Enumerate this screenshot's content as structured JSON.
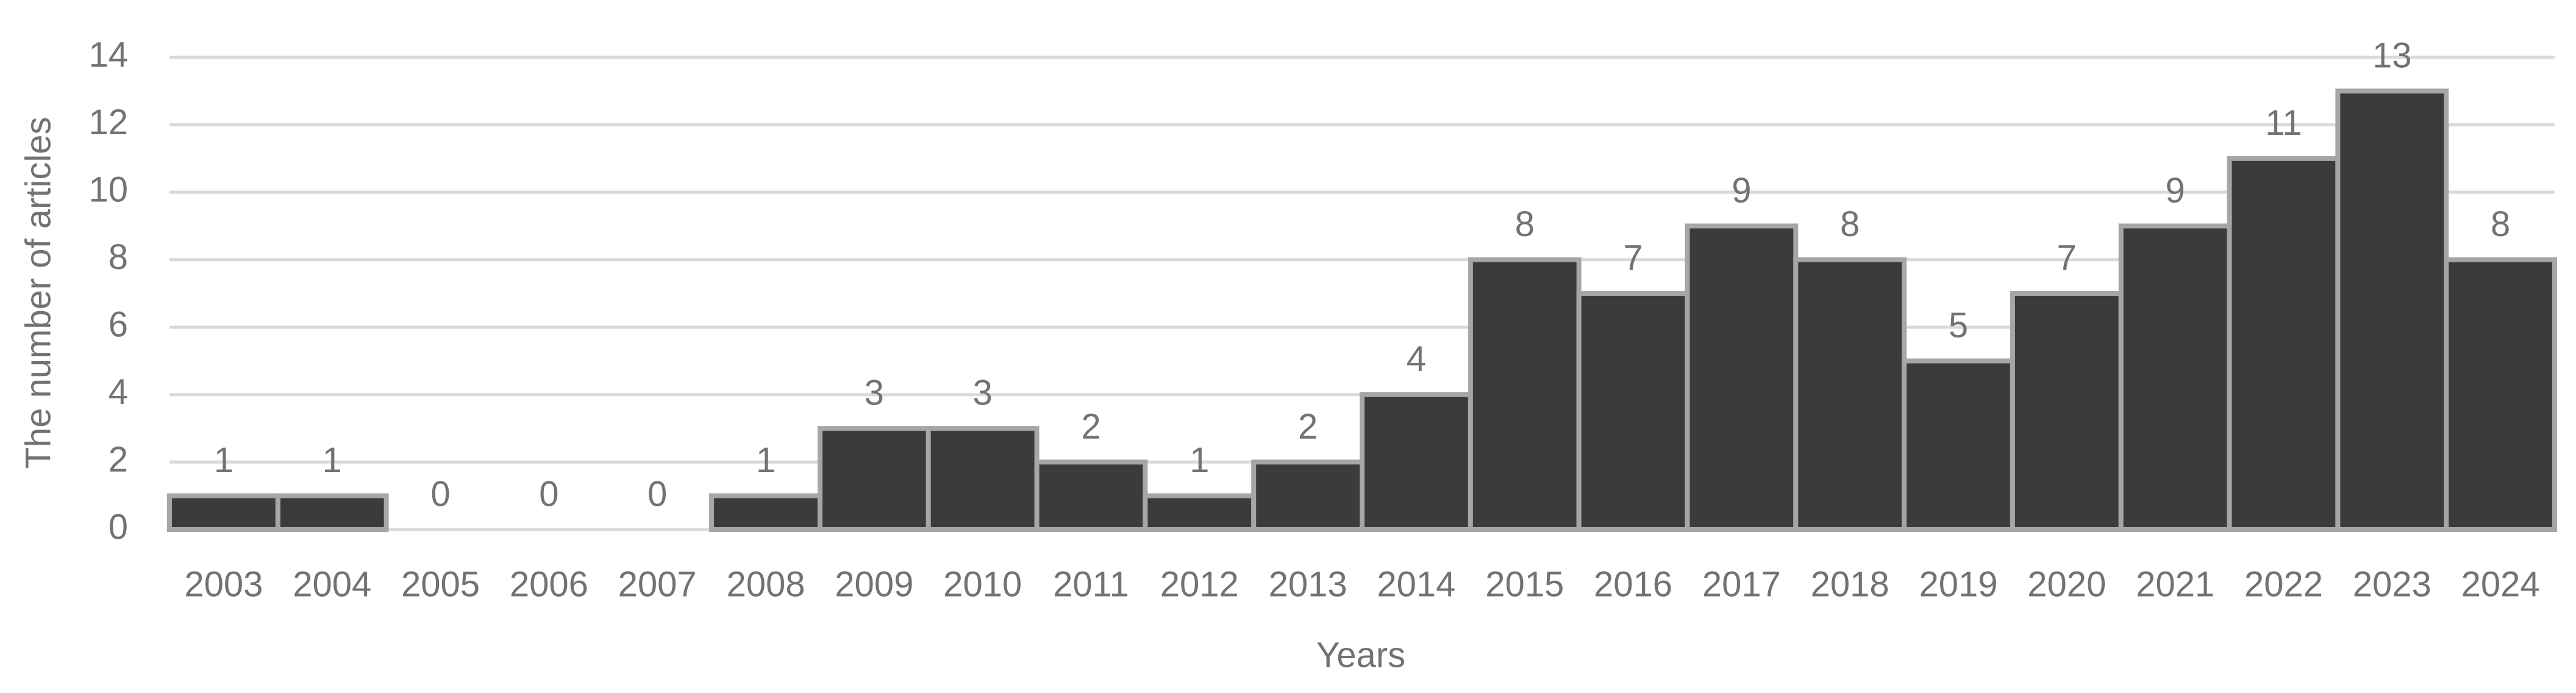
{
  "chart_data": {
    "type": "bar",
    "x_label": "Years",
    "y_label": "The number of articles",
    "categories": [
      "2003",
      "2004",
      "2005",
      "2006",
      "2007",
      "2008",
      "2009",
      "2010",
      "2011",
      "2012",
      "2013",
      "2014",
      "2015",
      "2016",
      "2017",
      "2018",
      "2019",
      "2020",
      "2021",
      "2022",
      "2023",
      "2024"
    ],
    "values": [
      1,
      1,
      0,
      0,
      0,
      1,
      3,
      3,
      2,
      1,
      2,
      4,
      8,
      7,
      9,
      8,
      5,
      7,
      9,
      11,
      13,
      8
    ],
    "color": "#3b3b3b",
    "edge_color": "#a6a6a6",
    "ylim": [
      0,
      14
    ],
    "yticks": [
      0,
      2,
      4,
      6,
      8,
      10,
      12,
      14
    ],
    "grid": true
  }
}
